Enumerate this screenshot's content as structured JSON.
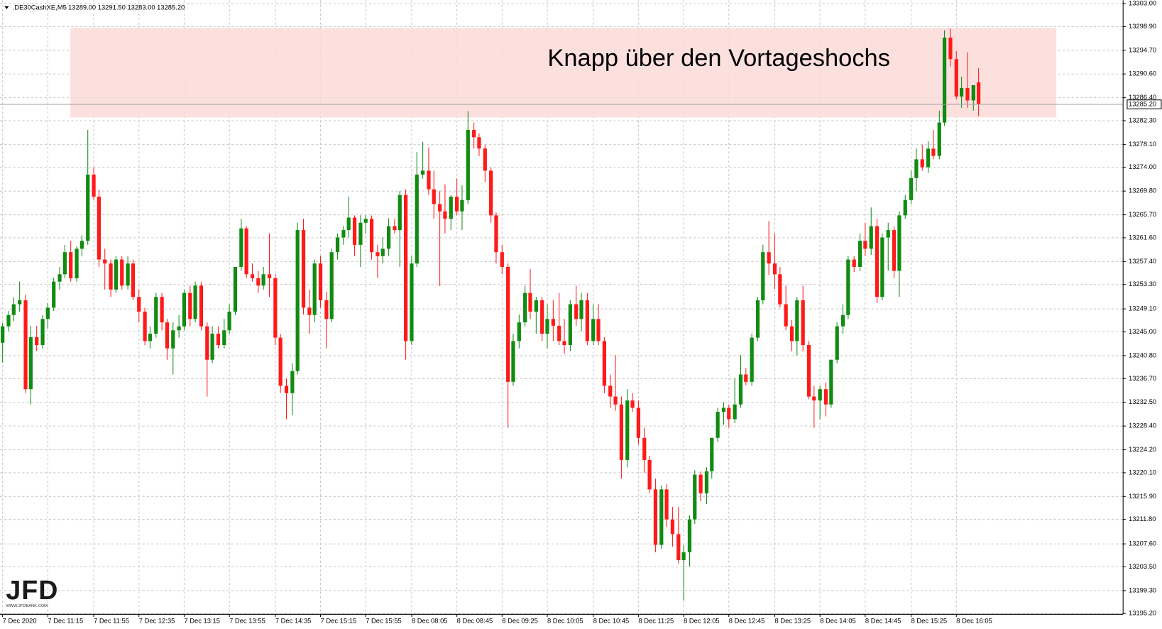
{
  "chart_data": {
    "type": "candlestick",
    "title": ".DE30CashXE,M5",
    "subtitle": "13289.00 13291.50 13283.00 13285.20",
    "annotation": "Knapp über den Vortageshochs",
    "logo": "JFD",
    "logo_caption": "WWW.JFDBANK.COM",
    "up_color": "#118b11",
    "down_color": "#ff1a1a",
    "zone": {
      "y": [
        13282.8,
        13298.6
      ],
      "x": [
        12,
        185.7
      ],
      "color": "#fadbd8"
    },
    "current_price": {
      "value": 13285.2,
      "label": "13285.20"
    },
    "grid": true,
    "xlim": [
      -0.4,
      197.4
    ],
    "ylim": [
      13195.1,
      13303.5
    ],
    "xticks": [
      {
        "value": 0,
        "label": "7 Dec 2020"
      },
      {
        "value": 8,
        "label": "7 Dec 11:15"
      },
      {
        "value": 16,
        "label": "7 Dec 11:55"
      },
      {
        "value": 24,
        "label": "7 Dec 12:35"
      },
      {
        "value": 32,
        "label": "7 Dec 13:15"
      },
      {
        "value": 40,
        "label": "7 Dec 13:55"
      },
      {
        "value": 48,
        "label": "7 Dec 14:35"
      },
      {
        "value": 56,
        "label": "7 Dec 15:15"
      },
      {
        "value": 64,
        "label": "7 Dec 15:55"
      },
      {
        "value": 72,
        "label": "8 Dec 08:05"
      },
      {
        "value": 80,
        "label": "8 Dec 08:45"
      },
      {
        "value": 88,
        "label": "8 Dec 09:25"
      },
      {
        "value": 96,
        "label": "8 Dec 10:05"
      },
      {
        "value": 104,
        "label": "8 Dec 10:45"
      },
      {
        "value": 112,
        "label": "8 Dec 11:25"
      },
      {
        "value": 120,
        "label": "8 Dec 12:05"
      },
      {
        "value": 128,
        "label": "8 Dec 12:45"
      },
      {
        "value": 136,
        "label": "8 Dec 13:25"
      },
      {
        "value": 144,
        "label": "8 Dec 14:05"
      },
      {
        "value": 152,
        "label": "8 Dec 14:45"
      },
      {
        "value": 160,
        "label": "8 Dec 15:25"
      },
      {
        "value": 168,
        "label": "8 Dec 16:05"
      }
    ],
    "yticks": [
      {
        "value": 13303,
        "label": "13303.00"
      },
      {
        "value": 13298.9,
        "label": "13298.90"
      },
      {
        "value": 13294.7,
        "label": "13294.70"
      },
      {
        "value": 13290.6,
        "label": "13290.60"
      },
      {
        "value": 13286.4,
        "label": "13286.40"
      },
      {
        "value": 13282.3,
        "label": "13282.30"
      },
      {
        "value": 13278.1,
        "label": "13278.10"
      },
      {
        "value": 13274,
        "label": "13274.00"
      },
      {
        "value": 13269.8,
        "label": "13269.80"
      },
      {
        "value": 13265.7,
        "label": "13265.70"
      },
      {
        "value": 13261.6,
        "label": "13261.60"
      },
      {
        "value": 13257.4,
        "label": "13257.40"
      },
      {
        "value": 13253.3,
        "label": "13253.30"
      },
      {
        "value": 13249.1,
        "label": "13249.10"
      },
      {
        "value": 13245,
        "label": "13245.00"
      },
      {
        "value": 13240.8,
        "label": "13240.80"
      },
      {
        "value": 13236.7,
        "label": "13236.70"
      },
      {
        "value": 13232.5,
        "label": "13232.50"
      },
      {
        "value": 13228.4,
        "label": "13228.40"
      },
      {
        "value": 13224.2,
        "label": "13224.20"
      },
      {
        "value": 13220.1,
        "label": "13220.10"
      },
      {
        "value": 13215.9,
        "label": "13215.90"
      },
      {
        "value": 13211.8,
        "label": "13211.80"
      },
      {
        "value": 13207.6,
        "label": "13207.60"
      },
      {
        "value": 13203.5,
        "label": "13203.50"
      },
      {
        "value": 13199.3,
        "label": "13199.30"
      },
      {
        "value": 13195.2,
        "label": "13195.20"
      }
    ],
    "ohlc": [
      [
        13243.0,
        13246.5,
        13239.5,
        13245.9
      ],
      [
        13245.9,
        13248.6,
        13245.0,
        13247.9
      ],
      [
        13247.9,
        13251.0,
        13246.8,
        13249.8
      ],
      [
        13249.8,
        13253.8,
        13248.5,
        13250.5
      ],
      [
        13250.5,
        13251.5,
        13234.1,
        13234.8
      ],
      [
        13234.8,
        13246.0,
        13232.1,
        13244.0
      ],
      [
        13244.0,
        13246.0,
        13241.5,
        13242.6
      ],
      [
        13242.6,
        13247.9,
        13242.0,
        13247.2
      ],
      [
        13247.2,
        13250.0,
        13245.5,
        13249.2
      ],
      [
        13249.2,
        13254.5,
        13248.6,
        13253.8
      ],
      [
        13253.8,
        13256.4,
        13252.4,
        13255.1
      ],
      [
        13255.1,
        13260.3,
        13254.4,
        13259.0
      ],
      [
        13259.0,
        13261.0,
        13253.8,
        13254.4
      ],
      [
        13254.4,
        13260.0,
        13253.8,
        13259.6
      ],
      [
        13259.6,
        13262.0,
        13258.3,
        13261.0
      ],
      [
        13261.0,
        13280.6,
        13260.3,
        13272.7
      ],
      [
        13272.7,
        13274.0,
        13268.2,
        13268.8
      ],
      [
        13268.8,
        13270.0,
        13256.4,
        13257.7
      ],
      [
        13257.7,
        13259.6,
        13252.4,
        13257.0
      ],
      [
        13257.0,
        13257.7,
        13251.1,
        13252.4
      ],
      [
        13252.4,
        13258.3,
        13251.8,
        13257.7
      ],
      [
        13257.7,
        13258.3,
        13252.4,
        13253.1
      ],
      [
        13253.1,
        13258.3,
        13252.4,
        13257.0
      ],
      [
        13257.0,
        13257.7,
        13250.5,
        13251.1
      ],
      [
        13251.1,
        13252.4,
        13246.6,
        13248.5
      ],
      [
        13248.5,
        13249.2,
        13242.6,
        13243.3
      ],
      [
        13243.3,
        13245.9,
        13242.0,
        13244.6
      ],
      [
        13244.6,
        13251.8,
        13243.9,
        13251.1
      ],
      [
        13251.1,
        13251.8,
        13245.2,
        13246.6
      ],
      [
        13246.6,
        13247.2,
        13240.0,
        13242.0
      ],
      [
        13242.0,
        13246.6,
        13237.4,
        13245.2
      ],
      [
        13245.2,
        13247.9,
        13243.9,
        13245.9
      ],
      [
        13245.9,
        13252.4,
        13245.2,
        13251.8
      ],
      [
        13251.8,
        13253.1,
        13245.9,
        13247.2
      ],
      [
        13247.2,
        13253.8,
        13246.6,
        13253.1
      ],
      [
        13253.1,
        13253.8,
        13245.2,
        13245.9
      ],
      [
        13245.9,
        13246.6,
        13233.5,
        13240.0
      ],
      [
        13240.0,
        13245.9,
        13239.4,
        13244.6
      ],
      [
        13244.6,
        13245.9,
        13242.0,
        13242.6
      ],
      [
        13242.6,
        13247.2,
        13242.0,
        13245.2
      ],
      [
        13245.2,
        13249.8,
        13244.6,
        13248.5
      ],
      [
        13248.5,
        13256.4,
        13247.9,
        13256.4
      ],
      [
        13256.4,
        13264.9,
        13255.7,
        13263.2
      ],
      [
        13263.2,
        13263.6,
        13254.4,
        13255.1
      ],
      [
        13255.1,
        13257.0,
        13253.8,
        13254.4
      ],
      [
        13254.4,
        13255.7,
        13251.8,
        13253.1
      ],
      [
        13253.1,
        13256.4,
        13252.4,
        13255.1
      ],
      [
        13255.1,
        13262.3,
        13251.1,
        13254.4
      ],
      [
        13254.4,
        13255.1,
        13242.6,
        13243.9
      ],
      [
        13243.9,
        13244.6,
        13234.1,
        13235.4
      ],
      [
        13235.4,
        13236.7,
        13229.5,
        13234.1
      ],
      [
        13234.1,
        13239.4,
        13230.2,
        13238.0
      ],
      [
        13238.0,
        13264.2,
        13237.4,
        13262.9
      ],
      [
        13262.9,
        13264.9,
        13248.0,
        13249.2
      ],
      [
        13249.2,
        13252.4,
        13244.6,
        13247.9
      ],
      [
        13247.9,
        13257.7,
        13246.6,
        13257.0
      ],
      [
        13257.0,
        13258.3,
        13249.2,
        13250.5
      ],
      [
        13250.5,
        13252.0,
        13242.0,
        13247.2
      ],
      [
        13247.2,
        13259.6,
        13246.6,
        13259.0
      ],
      [
        13259.0,
        13262.3,
        13257.7,
        13261.6
      ],
      [
        13261.6,
        13263.6,
        13260.3,
        13262.9
      ],
      [
        13262.9,
        13268.8,
        13261.6,
        13265.1
      ],
      [
        13265.1,
        13265.5,
        13258.3,
        13260.3
      ],
      [
        13260.3,
        13265.5,
        13256.4,
        13264.2
      ],
      [
        13264.2,
        13265.5,
        13262.3,
        13264.9
      ],
      [
        13264.9,
        13265.5,
        13257.7,
        13259.0
      ],
      [
        13259.0,
        13260.3,
        13254.4,
        13258.3
      ],
      [
        13258.3,
        13261.6,
        13257.0,
        13259.6
      ],
      [
        13259.6,
        13265.0,
        13258.3,
        13263.6
      ],
      [
        13263.6,
        13264.9,
        13262.3,
        13262.9
      ],
      [
        13262.9,
        13269.8,
        13256.4,
        13269.1
      ],
      [
        13269.1,
        13270.1,
        13240.0,
        13243.3
      ],
      [
        13243.3,
        13258.3,
        13242.6,
        13257.0
      ],
      [
        13257.0,
        13276.7,
        13256.4,
        13272.7
      ],
      [
        13272.7,
        13278.5,
        13272.0,
        13273.4
      ],
      [
        13273.4,
        13277.5,
        13269.1,
        13270.1
      ],
      [
        13270.1,
        13273.4,
        13264.9,
        13267.5
      ],
      [
        13267.5,
        13269.8,
        13253.0,
        13266.2
      ],
      [
        13266.2,
        13271.0,
        13262.3,
        13264.9
      ],
      [
        13264.9,
        13269.1,
        13262.9,
        13268.8
      ],
      [
        13268.8,
        13272.0,
        13265.5,
        13266.2
      ],
      [
        13266.2,
        13270.8,
        13262.9,
        13268.2
      ],
      [
        13268.2,
        13283.9,
        13267.5,
        13280.6
      ],
      [
        13280.6,
        13281.9,
        13277.3,
        13279.3
      ],
      [
        13279.3,
        13280.0,
        13276.0,
        13277.3
      ],
      [
        13277.3,
        13278.0,
        13271.4,
        13273.4
      ],
      [
        13273.4,
        13274.0,
        13264.2,
        13265.5
      ],
      [
        13265.5,
        13266.0,
        13257.0,
        13259.0
      ],
      [
        13259.0,
        13260.3,
        13255.1,
        13256.4
      ],
      [
        13256.4,
        13257.0,
        13228.0,
        13236.1
      ],
      [
        13236.1,
        13244.6,
        13235.4,
        13243.3
      ],
      [
        13243.3,
        13248.0,
        13242.0,
        13246.6
      ],
      [
        13246.6,
        13253.1,
        13245.9,
        13251.8
      ],
      [
        13251.8,
        13256.0,
        13247.2,
        13248.5
      ],
      [
        13248.5,
        13251.1,
        13244.6,
        13250.5
      ],
      [
        13250.5,
        13251.1,
        13243.3,
        13244.6
      ],
      [
        13244.6,
        13249.8,
        13242.0,
        13247.2
      ],
      [
        13247.2,
        13250.5,
        13243.3,
        13246.0
      ],
      [
        13246.0,
        13251.8,
        13242.6,
        13243.3
      ],
      [
        13243.3,
        13247.2,
        13241.0,
        13242.6
      ],
      [
        13242.6,
        13250.5,
        13241.5,
        13249.8
      ],
      [
        13249.8,
        13253.1,
        13246.0,
        13247.2
      ],
      [
        13247.2,
        13251.8,
        13245.0,
        13250.5
      ],
      [
        13250.5,
        13251.8,
        13242.6,
        13243.3
      ],
      [
        13243.3,
        13249.8,
        13242.6,
        13247.2
      ],
      [
        13247.2,
        13249.8,
        13242.6,
        13243.3
      ],
      [
        13243.3,
        13244.0,
        13234.1,
        13235.4
      ],
      [
        13235.4,
        13237.4,
        13231.5,
        13233.5
      ],
      [
        13233.5,
        13240.8,
        13231.0,
        13232.1
      ],
      [
        13232.1,
        13233.5,
        13219.0,
        13222.3
      ],
      [
        13222.3,
        13234.8,
        13221.0,
        13232.8
      ],
      [
        13232.8,
        13234.1,
        13230.8,
        13231.5
      ],
      [
        13231.5,
        13232.8,
        13225.0,
        13226.2
      ],
      [
        13226.2,
        13228.0,
        13220.0,
        13222.3
      ],
      [
        13222.3,
        13223.0,
        13216.4,
        13217.1
      ],
      [
        13217.1,
        13219.0,
        13206.0,
        13207.3
      ],
      [
        13207.3,
        13217.8,
        13206.6,
        13217.1
      ],
      [
        13217.1,
        13218.0,
        13210.5,
        13211.8
      ],
      [
        13211.8,
        13214.0,
        13207.0,
        13209.2
      ],
      [
        13209.2,
        13214.0,
        13204.0,
        13204.6
      ],
      [
        13204.6,
        13207.3,
        13197.5,
        13206.0
      ],
      [
        13206.0,
        13212.5,
        13203.5,
        13211.8
      ],
      [
        13211.8,
        13220.5,
        13211.0,
        13219.7
      ],
      [
        13219.7,
        13220.3,
        13215.0,
        13216.4
      ],
      [
        13216.4,
        13221.0,
        13214.5,
        13220.3
      ],
      [
        13220.3,
        13226.2,
        13219.0,
        13226.2
      ],
      [
        13226.2,
        13231.5,
        13225.5,
        13230.8
      ],
      [
        13230.8,
        13232.5,
        13228.5,
        13231.5
      ],
      [
        13231.5,
        13232.1,
        13228.0,
        13229.5
      ],
      [
        13229.5,
        13236.7,
        13228.8,
        13232.1
      ],
      [
        13232.1,
        13240.8,
        13231.5,
        13237.4
      ],
      [
        13237.4,
        13238.5,
        13235.5,
        13236.1
      ],
      [
        13236.1,
        13244.6,
        13235.4,
        13243.9
      ],
      [
        13243.9,
        13251.1,
        13243.3,
        13250.5
      ],
      [
        13250.5,
        13260.3,
        13249.8,
        13259.0
      ],
      [
        13259.0,
        13264.5,
        13255.0,
        13257.0
      ],
      [
        13257.0,
        13262.3,
        13252.5,
        13255.1
      ],
      [
        13255.1,
        13256.4,
        13249.2,
        13249.8
      ],
      [
        13249.8,
        13253.1,
        13245.2,
        13245.9
      ],
      [
        13245.9,
        13247.0,
        13241.5,
        13243.3
      ],
      [
        13243.3,
        13251.1,
        13240.8,
        13250.5
      ],
      [
        13250.5,
        13253.1,
        13241.5,
        13242.6
      ],
      [
        13242.6,
        13243.3,
        13233.0,
        13233.5
      ],
      [
        13233.5,
        13235.4,
        13228.0,
        13232.8
      ],
      [
        13232.8,
        13235.4,
        13229.5,
        13234.8
      ],
      [
        13234.8,
        13236.0,
        13230.0,
        13232.1
      ],
      [
        13232.1,
        13240.0,
        13231.5,
        13240.0
      ],
      [
        13240.0,
        13246.6,
        13239.4,
        13245.9
      ],
      [
        13245.9,
        13249.8,
        13244.6,
        13247.9
      ],
      [
        13247.9,
        13258.3,
        13247.2,
        13257.7
      ],
      [
        13257.7,
        13258.3,
        13255.5,
        13256.4
      ],
      [
        13256.4,
        13262.3,
        13255.7,
        13261.0
      ],
      [
        13261.0,
        13264.2,
        13258.3,
        13259.6
      ],
      [
        13259.6,
        13266.9,
        13258.5,
        13263.6
      ],
      [
        13263.6,
        13264.9,
        13250.0,
        13251.1
      ],
      [
        13251.1,
        13262.3,
        13250.5,
        13261.6
      ],
      [
        13261.6,
        13264.2,
        13255.7,
        13262.9
      ],
      [
        13262.9,
        13263.6,
        13254.4,
        13255.7
      ],
      [
        13255.7,
        13266.2,
        13251.1,
        13265.5
      ],
      [
        13265.5,
        13269.1,
        13264.9,
        13268.2
      ],
      [
        13268.2,
        13273.4,
        13267.5,
        13272.1
      ],
      [
        13272.1,
        13277.3,
        13269.8,
        13275.4
      ],
      [
        13275.4,
        13278.0,
        13273.4,
        13274.0
      ],
      [
        13274.0,
        13278.6,
        13273.0,
        13277.3
      ],
      [
        13277.3,
        13280.6,
        13275.4,
        13276.0
      ],
      [
        13276.0,
        13284.0,
        13275.4,
        13281.9
      ],
      [
        13281.9,
        13298.2,
        13281.3,
        13296.9
      ],
      [
        13296.9,
        13298.5,
        13291.8,
        13293.1
      ],
      [
        13293.1,
        13294.5,
        13286.0,
        13286.5
      ],
      [
        13286.5,
        13290.0,
        13284.5,
        13288.0
      ],
      [
        13288.0,
        13294.3,
        13284.5,
        13285.8
      ],
      [
        13285.8,
        13288.5,
        13284.0,
        13288.5
      ],
      [
        13289.0,
        13291.5,
        13283.0,
        13285.2
      ]
    ]
  }
}
